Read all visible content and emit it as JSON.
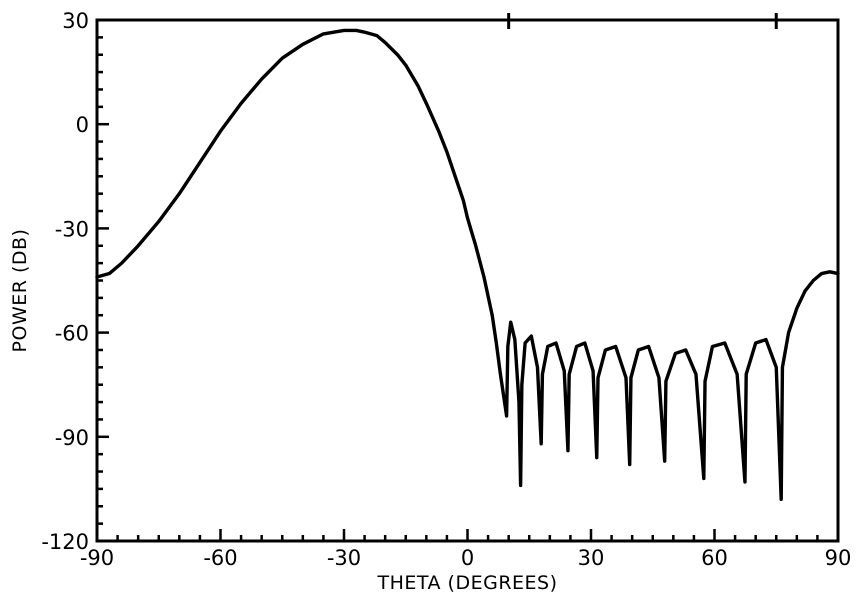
{
  "chart_data": {
    "type": "line",
    "title": "",
    "xlabel": "THETA (DEGREES)",
    "ylabel": "POWER (DB)",
    "xlim": [
      -90,
      90
    ],
    "ylim": [
      -120,
      30
    ],
    "x_ticks": [
      -90,
      -60,
      -30,
      0,
      30,
      60,
      90
    ],
    "x_tick_labels": [
      "-90",
      "-60",
      "-30",
      "0",
      "30",
      "60",
      "90"
    ],
    "y_ticks": [
      30,
      0,
      -30,
      -60,
      -90,
      -120
    ],
    "y_tick_labels": [
      "30",
      "0",
      "-30",
      "-60",
      "-90",
      "-120"
    ],
    "top_axis_markers_x": [
      10,
      75
    ],
    "grid": false,
    "legend": "none",
    "line_color": "#000000",
    "series": [
      {
        "x": [
          -90,
          -87,
          -84,
          -80,
          -75,
          -70,
          -65,
          -60,
          -55,
          -50,
          -45,
          -40,
          -35,
          -30,
          -27,
          -25,
          -22,
          -20,
          -17,
          -15,
          -12,
          -10,
          -7,
          -5,
          -3,
          -1,
          0,
          2,
          4,
          6,
          7,
          8,
          9,
          9.5,
          9.8,
          10.5,
          11.5,
          12.5,
          12.9,
          13.2,
          14,
          15.5,
          17,
          17.9,
          18.2,
          19.5,
          21.5,
          23.5,
          24.4,
          24.7,
          26.5,
          28.5,
          30.5,
          31.4,
          31.7,
          33.5,
          36,
          38.5,
          39.4,
          39.7,
          41.5,
          44,
          46.5,
          47.9,
          48.2,
          50.5,
          53,
          55.5,
          57.4,
          57.7,
          59.5,
          62.5,
          65.5,
          67.4,
          67.7,
          70,
          72.5,
          75,
          76.2,
          76.5,
          78,
          80,
          82,
          84,
          86,
          88,
          90
        ],
        "y": [
          -44,
          -43,
          -40,
          -35,
          -28,
          -20,
          -11,
          -2,
          6,
          13,
          19,
          23,
          26,
          27,
          27,
          26.5,
          25.5,
          23.5,
          20,
          17,
          11,
          6,
          -2,
          -8,
          -15,
          -22,
          -27,
          -35,
          -44,
          -55,
          -63,
          -72,
          -80,
          -84,
          -64,
          -57,
          -62,
          -80,
          -104,
          -75,
          -63,
          -61,
          -70,
          -92,
          -72,
          -64,
          -63,
          -71,
          -94,
          -72,
          -64,
          -63,
          -71,
          -96,
          -73,
          -65,
          -64,
          -73,
          -98,
          -73,
          -65,
          -64,
          -73,
          -97,
          -74,
          -66,
          -65,
          -72,
          -102,
          -74,
          -64,
          -63,
          -72,
          -103,
          -72,
          -63,
          -62,
          -70,
          -108,
          -70,
          -60,
          -53,
          -48,
          -45,
          -43,
          -42.5,
          -43
        ]
      }
    ]
  }
}
